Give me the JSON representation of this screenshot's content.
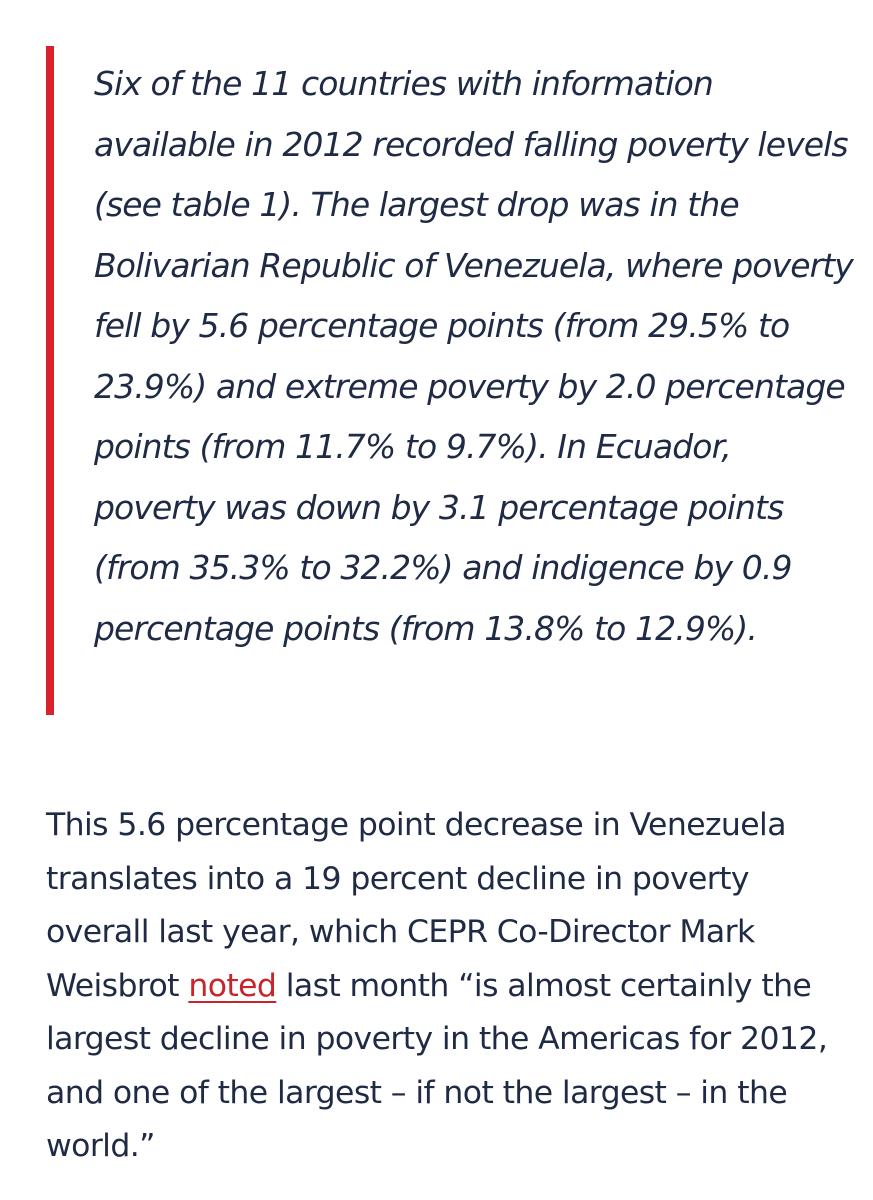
{
  "blockquote": {
    "text": "Six of the 11 countries with information available in 2012 recorded falling poverty levels (see table 1). The largest drop was in the Bolivarian Republic of Venezuela, where poverty fell by 5.6 percentage points (from 29.5% to 23.9%) and extreme poverty by 2.0 percentage points (from 11.7% to 9.7%). In Ecuador, poverty was down by 3.1 percentage points (from 35.3% to 32.2%) and indigence by 0.9 percentage points (from 13.8% to 12.9%).",
    "accent_color": "#d9222a"
  },
  "paragraph": {
    "before_link": "This 5.6 percentage point decrease in Venezuela translates into a 19 percent decline in poverty overall last year, which CEPR Co-Director Mark Weisbrot ",
    "link_text": "noted",
    "after_link": " last month “is almost certainly the largest decline in poverty in the Americas for 2012, and one of the largest – if not the largest – in the world.”",
    "link_color": "#c8242b"
  },
  "text_color": "#1f2a44"
}
